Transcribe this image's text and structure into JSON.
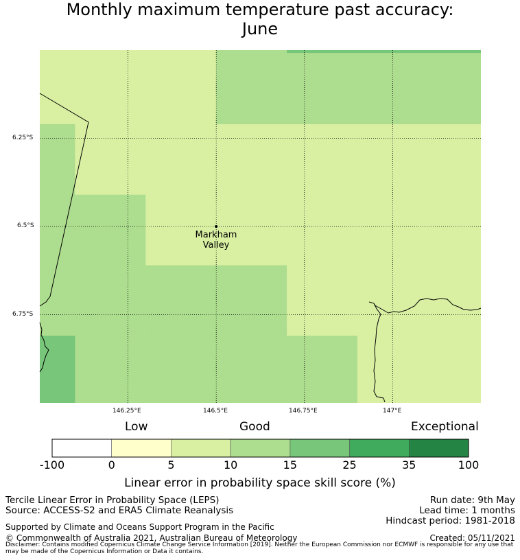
{
  "title": {
    "line1": "Monthly maximum temperature past accuracy:",
    "line2": "June"
  },
  "map": {
    "lat_ticks": [
      "6.25°S",
      "6.5°S",
      "6.75°S"
    ],
    "lon_ticks": [
      "146.25°E",
      "146.5°E",
      "146.75°E",
      "147°E"
    ],
    "place": {
      "name_line1": "Markham",
      "name_line2": "Valley",
      "lat": -6.5,
      "lon": 146.5
    },
    "extent": {
      "lon_min": 146.0,
      "lon_max": 147.25,
      "lat_min": -7.0,
      "lat_max": -6.0
    },
    "cells": [
      {
        "lon0": 146.0,
        "lon1": 147.25,
        "lat0": -7.0,
        "lat1": -6.0,
        "class": "5-10"
      },
      {
        "lon0": 146.5,
        "lon1": 147.25,
        "lat0": -6.21,
        "lat1": -6.0,
        "class": "10-15"
      },
      {
        "lon0": 146.7,
        "lon1": 147.25,
        "lat0": -6.008,
        "lat1": -6.0,
        "class": "15-25"
      },
      {
        "lon0": 146.0,
        "lon1": 146.1,
        "lat0": -6.61,
        "lat1": -6.21,
        "class": "10-15"
      },
      {
        "lon0": 146.0,
        "lon1": 146.3,
        "lat0": -6.81,
        "lat1": -6.41,
        "class": "10-15"
      },
      {
        "lon0": 146.3,
        "lon1": 146.7,
        "lat0": -7.0,
        "lat1": -6.61,
        "class": "10-15"
      },
      {
        "lon0": 146.0,
        "lon1": 146.3,
        "lat0": -7.0,
        "lat1": -6.81,
        "class": "10-15"
      },
      {
        "lon0": 146.7,
        "lon1": 146.9,
        "lat0": -7.0,
        "lat1": -6.81,
        "class": "10-15"
      },
      {
        "lon0": 146.0,
        "lon1": 146.1,
        "lat0": -7.0,
        "lat1": -6.81,
        "class": "15-25"
      }
    ]
  },
  "colorbar": {
    "categories": [
      {
        "label": "Low",
        "between": [
          "0",
          "5"
        ]
      },
      {
        "label": "Good",
        "between": [
          "5",
          "15"
        ]
      },
      {
        "label": "Exceptional",
        "between": [
          "35",
          "100"
        ]
      }
    ],
    "bins": [
      {
        "from": "-100",
        "to": "0",
        "color": "#ffffff"
      },
      {
        "from": "0",
        "to": "5",
        "color": "#ffffcc"
      },
      {
        "from": "5",
        "to": "10",
        "color": "#d9f0a3"
      },
      {
        "from": "10",
        "to": "15",
        "color": "#addd8e"
      },
      {
        "from": "15",
        "to": "25",
        "color": "#78c679"
      },
      {
        "from": "25",
        "to": "35",
        "color": "#41ab5d"
      },
      {
        "from": "35",
        "to": "100",
        "color": "#238443"
      }
    ],
    "tick_labels": [
      "-100",
      "0",
      "5",
      "10",
      "15",
      "25",
      "35",
      "100"
    ],
    "label": "Linear error in probability space skill score (%)"
  },
  "footer": {
    "left1": "Tercile Linear Error in Probability Space (LEPS)",
    "left2": "Source: ACCESS-S2 and ERA5 Climate Reanalysis",
    "run_date": "Run date: 9th May",
    "lead_time": "Lead time: 1 months",
    "hindcast": "Hindcast period: 1981-2018",
    "supported": "Supported by Climate and Oceans Support Program in the Pacific",
    "copyright": "© Commonwealth of Australia 2021, Australian Bureau of Meteorology",
    "created": "Created: 05/11/2021",
    "disclaimer": "Disclaimer: Contains modified Copernicus Climate Change Service Information [2019]. Neither the European Commission nor ECMWF is responsible for any use that may be made of the Copernicus Information or Data it contains."
  }
}
